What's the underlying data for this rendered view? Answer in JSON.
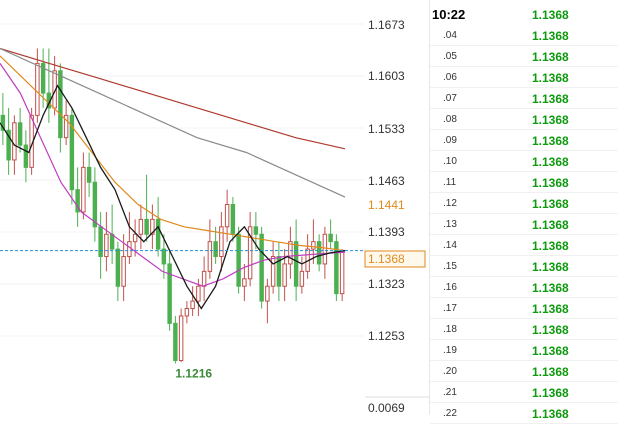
{
  "price_axis": {
    "labels": [
      "1.1673",
      "1.1603",
      "1.1533",
      "1.1463",
      "1.1393",
      "1.1323",
      "1.1253",
      "0.0069"
    ],
    "ma_tag": "1.1441",
    "current_tag": "1.1368"
  },
  "low_marker": "1.1216",
  "tick_list": {
    "header_time": "10:22",
    "header_price": "1.1368",
    "rows": [
      {
        "time": ".04",
        "price": "1.1368"
      },
      {
        "time": ".05",
        "price": "1.1368"
      },
      {
        "time": ".06",
        "price": "1.1368"
      },
      {
        "time": ".07",
        "price": "1.1368"
      },
      {
        "time": ".08",
        "price": "1.1368"
      },
      {
        "time": ".09",
        "price": "1.1368"
      },
      {
        "time": ".10",
        "price": "1.1368"
      },
      {
        "time": ".11",
        "price": "1.1368"
      },
      {
        "time": ".12",
        "price": "1.1368"
      },
      {
        "time": ".13",
        "price": "1.1368"
      },
      {
        "time": ".14",
        "price": "1.1368"
      },
      {
        "time": ".15",
        "price": "1.1368"
      },
      {
        "time": ".16",
        "price": "1.1368"
      },
      {
        "time": ".17",
        "price": "1.1368"
      },
      {
        "time": ".18",
        "price": "1.1368"
      },
      {
        "time": ".19",
        "price": "1.1368"
      },
      {
        "time": ".20",
        "price": "1.1368"
      },
      {
        "time": ".21",
        "price": "1.1368"
      },
      {
        "time": ".22",
        "price": "1.1368"
      }
    ]
  },
  "colors": {
    "up_candle": "#c0504d",
    "down_candle": "#4caf50",
    "ma_red": "#b03a2e",
    "ma_gray": "#8a8a8a",
    "ma_orange": "#e08a1e",
    "ma_magenta": "#c03ec0",
    "line_black": "#1a1a1a",
    "current_line": "#1e8fd5",
    "tick_price": "#0e9a0e",
    "ma_tag": "#e08a1e",
    "low_label": "#3a8a3a"
  },
  "chart_data": {
    "type": "candlestick",
    "current_price": 1.1368,
    "ma_tag_value": 1.1441,
    "low_value": 1.1216,
    "candles": [
      [
        1.155,
        1.158,
        1.151,
        1.153
      ],
      [
        1.153,
        1.156,
        1.147,
        1.149
      ],
      [
        1.149,
        1.155,
        1.147,
        1.154
      ],
      [
        1.154,
        1.156,
        1.15,
        1.151
      ],
      [
        1.151,
        1.153,
        1.146,
        1.148
      ],
      [
        1.148,
        1.156,
        1.147,
        1.155
      ],
      [
        1.155,
        1.164,
        1.154,
        1.162
      ],
      [
        1.162,
        1.164,
        1.156,
        1.158
      ],
      [
        1.158,
        1.164,
        1.154,
        1.156
      ],
      [
        1.156,
        1.163,
        1.155,
        1.161
      ],
      [
        1.161,
        1.162,
        1.15,
        1.152
      ],
      [
        1.152,
        1.157,
        1.151,
        1.155
      ],
      [
        1.155,
        1.156,
        1.143,
        1.145
      ],
      [
        1.145,
        1.148,
        1.14,
        1.142
      ],
      [
        1.142,
        1.15,
        1.141,
        1.148
      ],
      [
        1.148,
        1.15,
        1.144,
        1.146
      ],
      [
        1.146,
        1.148,
        1.138,
        1.14
      ],
      [
        1.14,
        1.142,
        1.133,
        1.136
      ],
      [
        1.136,
        1.142,
        1.134,
        1.139
      ],
      [
        1.139,
        1.143,
        1.135,
        1.137
      ],
      [
        1.137,
        1.138,
        1.13,
        1.132
      ],
      [
        1.132,
        1.139,
        1.13,
        1.136
      ],
      [
        1.136,
        1.142,
        1.135,
        1.138
      ],
      [
        1.138,
        1.141,
        1.136,
        1.139
      ],
      [
        1.139,
        1.143,
        1.137,
        1.141
      ],
      [
        1.141,
        1.147,
        1.138,
        1.139
      ],
      [
        1.139,
        1.143,
        1.137,
        1.141
      ],
      [
        1.141,
        1.144,
        1.136,
        1.137
      ],
      [
        1.137,
        1.139,
        1.133,
        1.135
      ],
      [
        1.135,
        1.137,
        1.126,
        1.127
      ],
      [
        1.127,
        1.128,
        1.1216,
        1.122
      ],
      [
        1.122,
        1.129,
        1.1218,
        1.128
      ],
      [
        1.128,
        1.13,
        1.127,
        1.129
      ],
      [
        1.129,
        1.132,
        1.128,
        1.13
      ],
      [
        1.13,
        1.133,
        1.128,
        1.132
      ],
      [
        1.132,
        1.136,
        1.13,
        1.134
      ],
      [
        1.134,
        1.141,
        1.133,
        1.138
      ],
      [
        1.138,
        1.14,
        1.135,
        1.136
      ],
      [
        1.136,
        1.142,
        1.134,
        1.14
      ],
      [
        1.14,
        1.145,
        1.138,
        1.143
      ],
      [
        1.143,
        1.144,
        1.138,
        1.139
      ],
      [
        1.139,
        1.14,
        1.131,
        1.132
      ],
      [
        1.132,
        1.135,
        1.13,
        1.133
      ],
      [
        1.133,
        1.142,
        1.132,
        1.14
      ],
      [
        1.14,
        1.142,
        1.137,
        1.139
      ],
      [
        1.139,
        1.14,
        1.129,
        1.13
      ],
      [
        1.13,
        1.133,
        1.127,
        1.132
      ],
      [
        1.132,
        1.138,
        1.131,
        1.136
      ],
      [
        1.136,
        1.138,
        1.13,
        1.132
      ],
      [
        1.132,
        1.137,
        1.13,
        1.135
      ],
      [
        1.135,
        1.14,
        1.133,
        1.138
      ],
      [
        1.138,
        1.141,
        1.13,
        1.132
      ],
      [
        1.132,
        1.136,
        1.131,
        1.134
      ],
      [
        1.134,
        1.139,
        1.133,
        1.137
      ],
      [
        1.137,
        1.141,
        1.135,
        1.138
      ],
      [
        1.138,
        1.139,
        1.134,
        1.135
      ],
      [
        1.135,
        1.14,
        1.133,
        1.139
      ],
      [
        1.139,
        1.141,
        1.137,
        1.138
      ],
      [
        1.138,
        1.139,
        1.13,
        1.131
      ],
      [
        1.131,
        1.137,
        1.13,
        1.1368
      ]
    ],
    "ma_red": [
      1.164,
      1.162,
      1.16,
      1.158,
      1.156,
      1.154,
      1.152,
      1.1505
    ],
    "ma_gray": [
      1.164,
      1.161,
      1.158,
      1.155,
      1.152,
      1.15,
      1.147,
      1.144
    ],
    "ma_orange": [
      1.163,
      1.16,
      1.157,
      1.154,
      1.15,
      1.146,
      1.143,
      1.141,
      1.14,
      1.1395,
      1.139,
      1.1385,
      1.138,
      1.1375,
      1.1372,
      1.1368
    ],
    "ma_magenta": [
      1.162,
      1.158,
      1.152,
      1.146,
      1.142,
      1.14,
      1.138,
      1.136,
      1.134,
      1.133,
      1.132,
      1.133,
      1.1345,
      1.1355,
      1.136,
      1.1362,
      1.1364,
      1.1366
    ],
    "line_black": [
      1.154,
      1.151,
      1.15,
      1.155,
      1.159,
      1.156,
      1.152,
      1.148,
      1.145,
      1.14,
      1.138,
      1.14,
      1.136,
      1.132,
      1.129,
      1.132,
      1.138,
      1.14,
      1.137,
      1.135,
      1.136,
      1.135,
      1.136,
      1.1365,
      1.1368
    ]
  }
}
